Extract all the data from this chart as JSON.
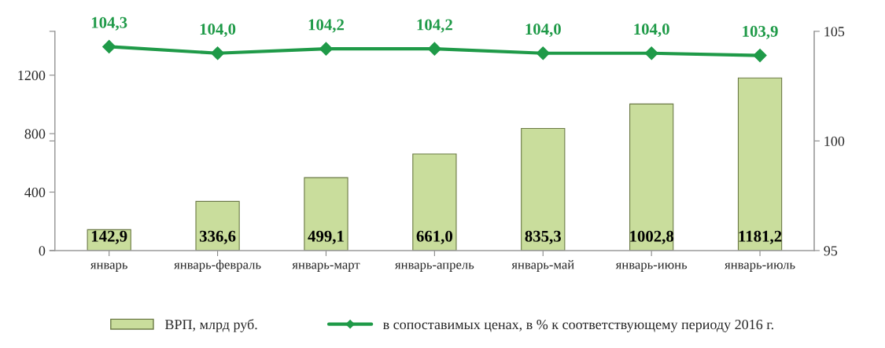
{
  "chart_data": {
    "type": "bar",
    "categories": [
      "январь",
      "январь-февраль",
      "январь-март",
      "январь-апрель",
      "январь-май",
      "январь-июнь",
      "январь-июль"
    ],
    "series": [
      {
        "name": "ВРП, млрд руб.",
        "color": "#c9dd9c",
        "values": [
          142.9,
          336.6,
          499.1,
          661.0,
          835.3,
          1002.8,
          1181.2
        ],
        "value_labels": [
          "142,9",
          "336,6",
          "499,1",
          "661,0",
          "835,3",
          "1002,8",
          "1181,2"
        ]
      },
      {
        "name": "в сопоставимых ценах, в % к соответствующему периоду 2016 г.",
        "type": "line",
        "axis": "y2",
        "color": "#1f9a48",
        "marker": "diamond",
        "values": [
          104.3,
          104.0,
          104.2,
          104.2,
          104.0,
          104.0,
          103.9
        ],
        "value_labels": [
          "104,3",
          "104,0",
          "104,2",
          "104,2",
          "104,0",
          "104,0",
          "103,9"
        ]
      }
    ],
    "ylim": [
      0,
      1500
    ],
    "yticks": [
      0,
      400,
      800,
      1200
    ],
    "y2lim": [
      95,
      105
    ],
    "y2ticks": [
      95,
      100,
      105
    ],
    "grid": false,
    "legend": "bottom"
  }
}
